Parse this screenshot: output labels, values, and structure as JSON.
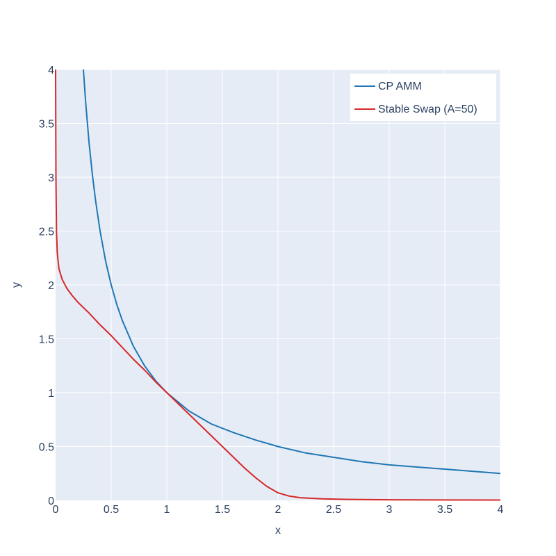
{
  "chart_data": {
    "type": "line",
    "title": "",
    "xlabel": "x",
    "ylabel": "y",
    "xlim": [
      0,
      4
    ],
    "ylim": [
      0,
      4
    ],
    "grid": true,
    "legend_position": "top-right",
    "x_ticks": [
      "0",
      "0.5",
      "1",
      "1.5",
      "2",
      "2.5",
      "3",
      "3.5",
      "4"
    ],
    "y_ticks": [
      "0",
      "0.5",
      "1",
      "1.5",
      "2",
      "2.5",
      "3",
      "3.5",
      "4"
    ],
    "colors": {
      "plot_bg": "#e5ecf6",
      "grid": "#ffffff",
      "text": "#2a3f5f"
    },
    "series": [
      {
        "name": "CP AMM",
        "color": "#1f77b4",
        "points": [
          [
            0.25,
            4.0
          ],
          [
            0.27,
            3.7
          ],
          [
            0.3,
            3.33
          ],
          [
            0.33,
            3.03
          ],
          [
            0.36,
            2.78
          ],
          [
            0.4,
            2.5
          ],
          [
            0.45,
            2.22
          ],
          [
            0.5,
            2.0
          ],
          [
            0.55,
            1.82
          ],
          [
            0.6,
            1.67
          ],
          [
            0.7,
            1.43
          ],
          [
            0.8,
            1.25
          ],
          [
            0.9,
            1.11
          ],
          [
            1.0,
            1.0
          ],
          [
            1.2,
            0.83
          ],
          [
            1.4,
            0.71
          ],
          [
            1.6,
            0.63
          ],
          [
            1.8,
            0.56
          ],
          [
            2.0,
            0.5
          ],
          [
            2.25,
            0.44
          ],
          [
            2.5,
            0.4
          ],
          [
            2.75,
            0.36
          ],
          [
            3.0,
            0.33
          ],
          [
            3.25,
            0.31
          ],
          [
            3.5,
            0.29
          ],
          [
            3.75,
            0.27
          ],
          [
            4.0,
            0.25
          ]
        ]
      },
      {
        "name": "Stable Swap (A=50)",
        "color": "#d62728",
        "points": [
          [
            0.0,
            4.0
          ],
          [
            0.003,
            3.0
          ],
          [
            0.008,
            2.5
          ],
          [
            0.015,
            2.3
          ],
          [
            0.03,
            2.15
          ],
          [
            0.06,
            2.05
          ],
          [
            0.1,
            1.97
          ],
          [
            0.15,
            1.9
          ],
          [
            0.2,
            1.84
          ],
          [
            0.3,
            1.74
          ],
          [
            0.4,
            1.63
          ],
          [
            0.5,
            1.53
          ],
          [
            0.6,
            1.42
          ],
          [
            0.7,
            1.31
          ],
          [
            0.8,
            1.21
          ],
          [
            0.9,
            1.1
          ],
          [
            1.0,
            1.0
          ],
          [
            1.1,
            0.9
          ],
          [
            1.2,
            0.8
          ],
          [
            1.3,
            0.7
          ],
          [
            1.4,
            0.6
          ],
          [
            1.5,
            0.5
          ],
          [
            1.6,
            0.4
          ],
          [
            1.7,
            0.3
          ],
          [
            1.8,
            0.21
          ],
          [
            1.9,
            0.13
          ],
          [
            2.0,
            0.07
          ],
          [
            2.1,
            0.04
          ],
          [
            2.2,
            0.025
          ],
          [
            2.4,
            0.015
          ],
          [
            2.6,
            0.01
          ],
          [
            3.0,
            0.006
          ],
          [
            3.5,
            0.004
          ],
          [
            4.0,
            0.003
          ]
        ]
      }
    ]
  }
}
